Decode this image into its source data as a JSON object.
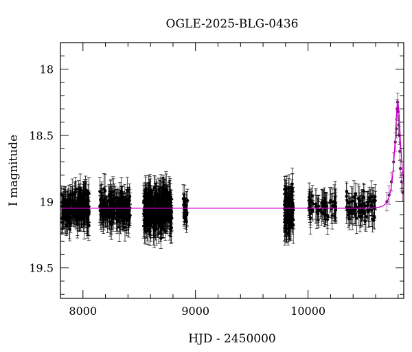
{
  "chart_data": {
    "type": "scatter",
    "title": "OGLE-2025-BLG-0436",
    "xlabel": "HJD - 2450000",
    "ylabel": "I magnitude",
    "xlim": [
      7800,
      10850
    ],
    "ylim": [
      19.73,
      17.8
    ],
    "y_inverted": true,
    "x_ticks": [
      {
        "value": 8000,
        "label": "8000"
      },
      {
        "value": 9000,
        "label": "9000"
      },
      {
        "value": 10000,
        "label": "10000"
      }
    ],
    "y_ticks": [
      {
        "value": 18,
        "label": "18"
      },
      {
        "value": 18.5,
        "label": "18.5"
      },
      {
        "value": 19,
        "label": "19"
      },
      {
        "value": 19.5,
        "label": "19.5"
      }
    ],
    "grid": false,
    "legend": "none",
    "colors": {
      "data": "#000000",
      "model": "#cc00cc",
      "peak_data": "#6a1f6a"
    },
    "series": [
      {
        "kind": "observations",
        "segments": [
          {
            "x_start": 7810,
            "x_end": 8060,
            "mean_mag": 19.05,
            "scatter": 0.13,
            "err": 0.09,
            "n": 220
          },
          {
            "x_start": 8150,
            "x_end": 8420,
            "mean_mag": 19.05,
            "scatter": 0.12,
            "err": 0.09,
            "n": 200
          },
          {
            "x_start": 8540,
            "x_end": 8790,
            "mean_mag": 19.06,
            "scatter": 0.15,
            "err": 0.1,
            "n": 300
          },
          {
            "x_start": 8890,
            "x_end": 8930,
            "mean_mag": 19.07,
            "scatter": 0.11,
            "err": 0.08,
            "n": 25
          },
          {
            "x_start": 9790,
            "x_end": 9870,
            "mean_mag": 19.06,
            "scatter": 0.16,
            "err": 0.1,
            "n": 120
          },
          {
            "x_start": 10000,
            "x_end": 10250,
            "mean_mag": 19.05,
            "scatter": 0.09,
            "err": 0.09,
            "n": 70
          },
          {
            "x_start": 10340,
            "x_end": 10610,
            "mean_mag": 19.04,
            "scatter": 0.1,
            "err": 0.09,
            "n": 80
          }
        ],
        "event_points": [
          {
            "x": 10700,
            "y": 19.0
          },
          {
            "x": 10720,
            "y": 18.95
          },
          {
            "x": 10740,
            "y": 18.85
          },
          {
            "x": 10760,
            "y": 18.7
          },
          {
            "x": 10775,
            "y": 18.55
          },
          {
            "x": 10785,
            "y": 18.45
          },
          {
            "x": 10790,
            "y": 18.3
          },
          {
            "x": 10795,
            "y": 18.25
          },
          {
            "x": 10800,
            "y": 18.32
          },
          {
            "x": 10805,
            "y": 18.42
          },
          {
            "x": 10810,
            "y": 18.5
          },
          {
            "x": 10815,
            "y": 18.62
          },
          {
            "x": 10820,
            "y": 18.75
          },
          {
            "x": 10830,
            "y": 18.85
          },
          {
            "x": 10840,
            "y": 18.93
          }
        ]
      },
      {
        "kind": "model",
        "baseline": 19.05,
        "t0": 10797,
        "peak_mag": 18.25,
        "tE": 45
      }
    ]
  }
}
